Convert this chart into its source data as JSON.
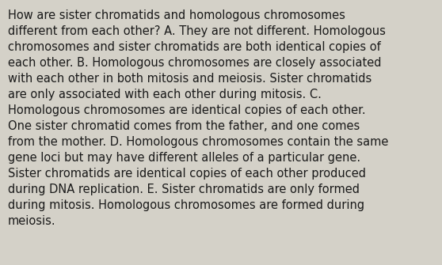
{
  "background_color": "#d4d1c8",
  "text_color": "#1a1a1a",
  "font_size": 10.5,
  "font_family": "DejaVu Sans",
  "figwidth": 5.58,
  "figheight": 3.35,
  "dpi": 100,
  "lines": [
    "How are sister chromatids and homologous chromosomes",
    "different from each other? A. They are not different. Homologous",
    "chromosomes and sister chromatids are both identical copies of",
    "each other. B. Homologous chromosomes are closely associated",
    "with each other in both mitosis and meiosis. Sister chromatids",
    "are only associated with each other during mitosis. C.",
    "Homologous chromosomes are identical copies of each other.",
    "One sister chromatid comes from the father, and one comes",
    "from the mother. D. Homologous chromosomes contain the same",
    "gene loci but may have different alleles of a particular gene.",
    "Sister chromatids are identical copies of each other produced",
    "during DNA replication. E. Sister chromatids are only formed",
    "during mitosis. Homologous chromosomes are formed during",
    "meiosis."
  ]
}
